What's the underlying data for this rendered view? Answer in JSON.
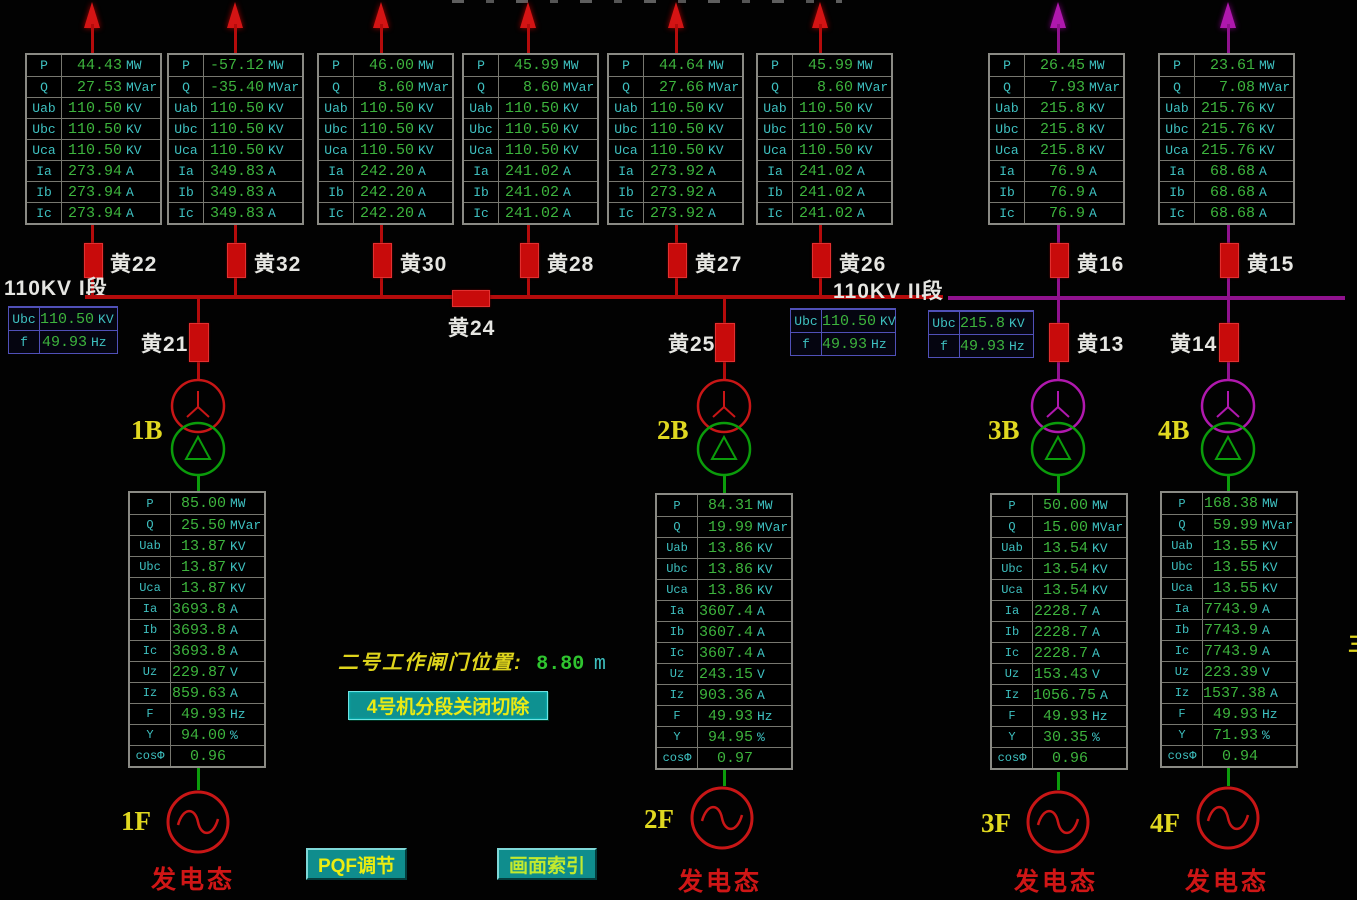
{
  "colors": {
    "line_red": "#b40b0b",
    "line_magenta": "#90128e",
    "line_green": "#0b9c0b",
    "value_green": "#3db43d",
    "label_cyan": "#3ec0c0",
    "id_yellow": "#e0d820",
    "status_red": "#cf1616",
    "button_teal": "#0f8d8d"
  },
  "buses": [
    {
      "label": "110KV I段"
    },
    {
      "label": "110KV II段"
    }
  ],
  "meters": [
    {
      "rows": [
        [
          "Ubc",
          "110.50",
          "KV"
        ],
        [
          "f",
          "49.93",
          "Hz"
        ]
      ]
    },
    {
      "rows": [
        [
          "Ubc",
          "110.50",
          "KV"
        ],
        [
          "f",
          "49.93",
          "Hz"
        ]
      ]
    },
    {
      "rows": [
        [
          "Ubc",
          "215.8",
          "KV"
        ],
        [
          "f",
          "49.93",
          "Hz"
        ]
      ]
    }
  ],
  "top_feeders": [
    {
      "breaker": "黄22",
      "rows": [
        [
          "P",
          "44.43",
          "MW"
        ],
        [
          "Q",
          "27.53",
          "MVar"
        ],
        [
          "Uab",
          "110.50",
          "KV"
        ],
        [
          "Ubc",
          "110.50",
          "KV"
        ],
        [
          "Uca",
          "110.50",
          "KV"
        ],
        [
          "Ia",
          "273.94",
          "A"
        ],
        [
          "Ib",
          "273.94",
          "A"
        ],
        [
          "Ic",
          "273.94",
          "A"
        ]
      ]
    },
    {
      "breaker": "黄32",
      "rows": [
        [
          "P",
          "-57.12",
          "MW"
        ],
        [
          "Q",
          "-35.40",
          "MVar"
        ],
        [
          "Uab",
          "110.50",
          "KV"
        ],
        [
          "Ubc",
          "110.50",
          "KV"
        ],
        [
          "Uca",
          "110.50",
          "KV"
        ],
        [
          "Ia",
          "349.83",
          "A"
        ],
        [
          "Ib",
          "349.83",
          "A"
        ],
        [
          "Ic",
          "349.83",
          "A"
        ]
      ]
    },
    {
      "breaker": "黄30",
      "rows": [
        [
          "P",
          "46.00",
          "MW"
        ],
        [
          "Q",
          "8.60",
          "MVar"
        ],
        [
          "Uab",
          "110.50",
          "KV"
        ],
        [
          "Ubc",
          "110.50",
          "KV"
        ],
        [
          "Uca",
          "110.50",
          "KV"
        ],
        [
          "Ia",
          "242.20",
          "A"
        ],
        [
          "Ib",
          "242.20",
          "A"
        ],
        [
          "Ic",
          "242.20",
          "A"
        ]
      ]
    },
    {
      "breaker": "黄28",
      "rows": [
        [
          "P",
          "45.99",
          "MW"
        ],
        [
          "Q",
          "8.60",
          "MVar"
        ],
        [
          "Uab",
          "110.50",
          "KV"
        ],
        [
          "Ubc",
          "110.50",
          "KV"
        ],
        [
          "Uca",
          "110.50",
          "KV"
        ],
        [
          "Ia",
          "241.02",
          "A"
        ],
        [
          "Ib",
          "241.02",
          "A"
        ],
        [
          "Ic",
          "241.02",
          "A"
        ]
      ]
    },
    {
      "breaker": "黄27",
      "rows": [
        [
          "P",
          "44.64",
          "MW"
        ],
        [
          "Q",
          "27.66",
          "MVar"
        ],
        [
          "Uab",
          "110.50",
          "KV"
        ],
        [
          "Ubc",
          "110.50",
          "KV"
        ],
        [
          "Uca",
          "110.50",
          "KV"
        ],
        [
          "Ia",
          "273.92",
          "A"
        ],
        [
          "Ib",
          "273.92",
          "A"
        ],
        [
          "Ic",
          "273.92",
          "A"
        ]
      ]
    },
    {
      "breaker": "黄26",
      "rows": [
        [
          "P",
          "45.99",
          "MW"
        ],
        [
          "Q",
          "8.60",
          "MVar"
        ],
        [
          "Uab",
          "110.50",
          "KV"
        ],
        [
          "Ubc",
          "110.50",
          "KV"
        ],
        [
          "Uca",
          "110.50",
          "KV"
        ],
        [
          "Ia",
          "241.02",
          "A"
        ],
        [
          "Ib",
          "241.02",
          "A"
        ],
        [
          "Ic",
          "241.02",
          "A"
        ]
      ]
    },
    {
      "breaker": "黄16",
      "rows": [
        [
          "P",
          "26.45",
          "MW"
        ],
        [
          "Q",
          "7.93",
          "MVar"
        ],
        [
          "Uab",
          "215.8",
          "KV"
        ],
        [
          "Ubc",
          "215.8",
          "KV"
        ],
        [
          "Uca",
          "215.8",
          "KV"
        ],
        [
          "Ia",
          "76.9",
          "A"
        ],
        [
          "Ib",
          "76.9",
          "A"
        ],
        [
          "Ic",
          "76.9",
          "A"
        ]
      ]
    },
    {
      "breaker": "黄15",
      "rows": [
        [
          "P",
          "23.61",
          "MW"
        ],
        [
          "Q",
          "7.08",
          "MVar"
        ],
        [
          "Uab",
          "215.76",
          "KV"
        ],
        [
          "Ubc",
          "215.76",
          "KV"
        ],
        [
          "Uca",
          "215.76",
          "KV"
        ],
        [
          "Ia",
          "68.68",
          "A"
        ],
        [
          "Ib",
          "68.68",
          "A"
        ],
        [
          "Ic",
          "68.68",
          "A"
        ]
      ]
    }
  ],
  "mid_breakers": [
    "黄24",
    "黄21",
    "黄25",
    "黄13",
    "黄14"
  ],
  "units": [
    {
      "transformer": "1B",
      "generator": "1F",
      "status": "发电态",
      "rows": [
        [
          "P",
          "85.00",
          "MW"
        ],
        [
          "Q",
          "25.50",
          "MVar"
        ],
        [
          "Uab",
          "13.87",
          "KV"
        ],
        [
          "Ubc",
          "13.87",
          "KV"
        ],
        [
          "Uca",
          "13.87",
          "KV"
        ],
        [
          "Ia",
          "3693.8",
          "A"
        ],
        [
          "Ib",
          "3693.8",
          "A"
        ],
        [
          "Ic",
          "3693.8",
          "A"
        ],
        [
          "Uz",
          "229.87",
          "V"
        ],
        [
          "Iz",
          "859.63",
          "A"
        ],
        [
          "F",
          "49.93",
          "Hz"
        ],
        [
          "Y",
          "94.00",
          "%"
        ],
        [
          "cosΦ",
          "0.96",
          ""
        ]
      ]
    },
    {
      "transformer": "2B",
      "generator": "2F",
      "status": "发电态",
      "rows": [
        [
          "P",
          "84.31",
          "MW"
        ],
        [
          "Q",
          "19.99",
          "MVar"
        ],
        [
          "Uab",
          "13.86",
          "KV"
        ],
        [
          "Ubc",
          "13.86",
          "KV"
        ],
        [
          "Uca",
          "13.86",
          "KV"
        ],
        [
          "Ia",
          "3607.4",
          "A"
        ],
        [
          "Ib",
          "3607.4",
          "A"
        ],
        [
          "Ic",
          "3607.4",
          "A"
        ],
        [
          "Uz",
          "243.15",
          "V"
        ],
        [
          "Iz",
          "903.36",
          "A"
        ],
        [
          "F",
          "49.93",
          "Hz"
        ],
        [
          "Y",
          "94.95",
          "%"
        ],
        [
          "cosΦ",
          "0.97",
          ""
        ]
      ]
    },
    {
      "transformer": "3B",
      "generator": "3F",
      "status": "发电态",
      "rows": [
        [
          "P",
          "50.00",
          "MW"
        ],
        [
          "Q",
          "15.00",
          "MVar"
        ],
        [
          "Uab",
          "13.54",
          "KV"
        ],
        [
          "Ubc",
          "13.54",
          "KV"
        ],
        [
          "Uca",
          "13.54",
          "KV"
        ],
        [
          "Ia",
          "2228.7",
          "A"
        ],
        [
          "Ib",
          "2228.7",
          "A"
        ],
        [
          "Ic",
          "2228.7",
          "A"
        ],
        [
          "Uz",
          "153.43",
          "V"
        ],
        [
          "Iz",
          "1056.75",
          "A"
        ],
        [
          "F",
          "49.93",
          "Hz"
        ],
        [
          "Y",
          "30.35",
          "%"
        ],
        [
          "cosΦ",
          "0.96",
          ""
        ]
      ]
    },
    {
      "transformer": "4B",
      "generator": "4F",
      "status": "发电态",
      "rows": [
        [
          "P",
          "168.38",
          "MW"
        ],
        [
          "Q",
          "59.99",
          "MVar"
        ],
        [
          "Uab",
          "13.55",
          "KV"
        ],
        [
          "Ubc",
          "13.55",
          "KV"
        ],
        [
          "Uca",
          "13.55",
          "KV"
        ],
        [
          "Ia",
          "7743.9",
          "A"
        ],
        [
          "Ib",
          "7743.9",
          "A"
        ],
        [
          "Ic",
          "7743.9",
          "A"
        ],
        [
          "Uz",
          "223.39",
          "V"
        ],
        [
          "Iz",
          "1537.38",
          "A"
        ],
        [
          "F",
          "49.93",
          "Hz"
        ],
        [
          "Y",
          "71.93",
          "%"
        ],
        [
          "cosΦ",
          "0.94",
          ""
        ]
      ]
    }
  ],
  "gate_text": {
    "label": "二号工作闸门位置:",
    "value": "8.80",
    "unit": "m"
  },
  "alarm_button": "4号机分段关闭切除",
  "buttons": [
    {
      "label": "PQF调节"
    },
    {
      "label": "画面索引"
    }
  ],
  "right_edge_fragment": "三"
}
